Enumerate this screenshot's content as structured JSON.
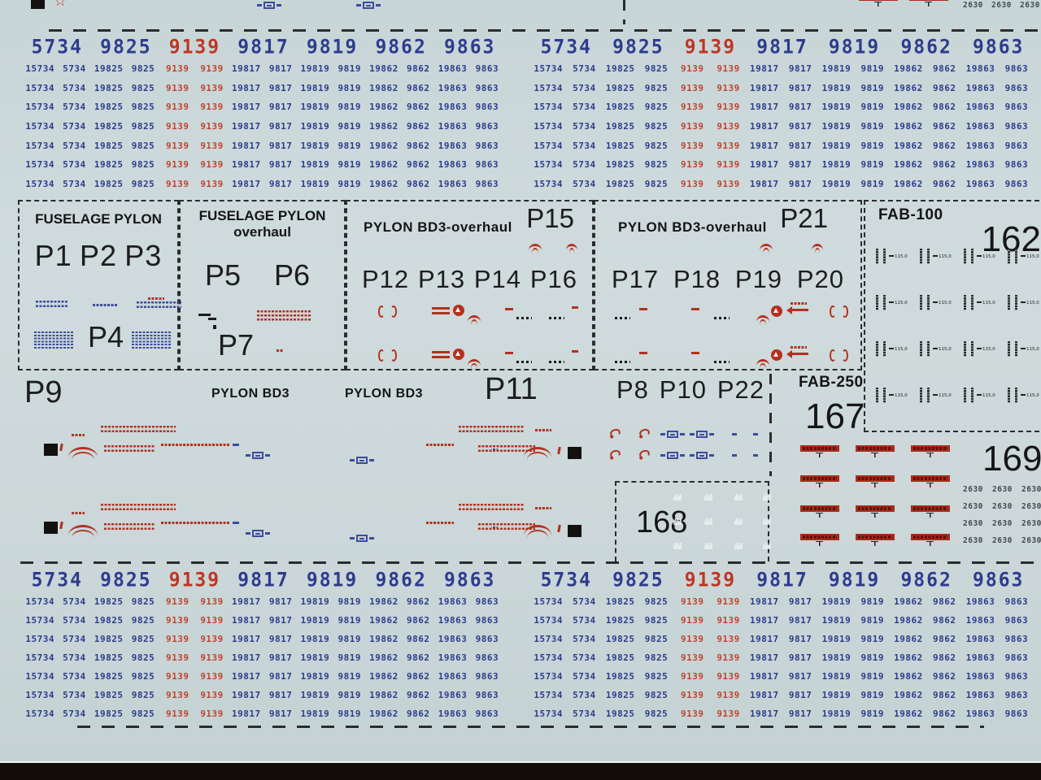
{
  "colors": {
    "sheet": "#ccd8d9",
    "navy": "#2d3c8e",
    "red": "#bf3524",
    "ink": "#1c1c1c"
  },
  "number_band": {
    "headers": [
      "5734",
      "9825",
      "9139",
      "9817",
      "9819",
      "9862",
      "9863"
    ],
    "red_header_index": 2,
    "pairs": [
      [
        "15734",
        "5734"
      ],
      [
        "19825",
        "9825"
      ],
      [
        "9139",
        "9139"
      ],
      [
        "19817",
        "9817"
      ],
      [
        "19819",
        "9819"
      ],
      [
        "19862",
        "9862"
      ],
      [
        "19863",
        "9863"
      ]
    ],
    "red_pair_index": 2,
    "top_rows": 7,
    "bottom_rows": 7
  },
  "boxes": {
    "fuselage_pylon": {
      "title": "FUSELAGE PYLON",
      "p_labels": [
        "P1",
        "P2",
        "P3"
      ],
      "p4": "P4"
    },
    "fuselage_pylon_overhaul": {
      "title": "FUSELAGE PYLON",
      "subtitle": "overhaul",
      "p5": "P5",
      "p6": "P6",
      "p7": "P7"
    },
    "pylon_bd3_overhaul_left": {
      "title": "PYLON BD3-overhaul",
      "corner": "P15",
      "p_labels": [
        "P12",
        "P13",
        "P14",
        "P16"
      ]
    },
    "pylon_bd3_overhaul_right": {
      "title": "PYLON BD3-overhaul",
      "corner": "P21",
      "p_labels": [
        "P17",
        "P18",
        "P19",
        "P20"
      ]
    },
    "fab100": {
      "title": "FAB-100",
      "sheet_number": "162",
      "stencil_value": "115,0",
      "grid_cols": 4,
      "grid_rows": 4
    }
  },
  "middle": {
    "p9": "P9",
    "pylon_bd3_left": "PYLON BD3",
    "pylon_bd3_right": "PYLON BD3",
    "p11": "P11",
    "p8_box": {
      "labels": [
        "P8",
        "P10",
        "P22"
      ]
    },
    "fab250": {
      "title": "FAB-250",
      "sheet_number": "167"
    },
    "box168_number": "168",
    "sheet_number_169": "169",
    "corner_value": "2630",
    "corner_top_count": 3,
    "corner_cols": 3,
    "corner_rows": 4
  }
}
